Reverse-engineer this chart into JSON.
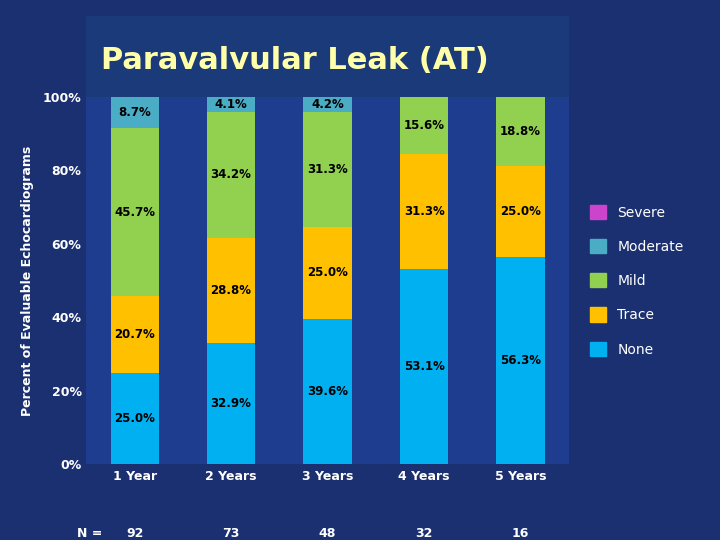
{
  "title": "Paravalvular Leak (AT)",
  "ylabel": "Percent of Evaluable Echocardiograms",
  "header_bg": "#1a3a7a",
  "plot_bg": "#1e3d8f",
  "fig_bg": "#1a3070",
  "categories": [
    "1 Year",
    "2 Years",
    "3 Years",
    "4 Years",
    "5 Years"
  ],
  "n_values": [
    "92",
    "73",
    "48",
    "32",
    "16"
  ],
  "segments": {
    "None": [
      25.0,
      32.9,
      39.6,
      53.1,
      56.3
    ],
    "Trace": [
      20.7,
      28.8,
      25.0,
      31.3,
      25.0
    ],
    "Mild": [
      45.7,
      34.2,
      31.3,
      15.6,
      18.8
    ],
    "Moderate": [
      8.7,
      4.1,
      4.2,
      0.0,
      0.0
    ],
    "Severe": [
      0.0,
      0.0,
      0.0,
      0.0,
      0.0
    ]
  },
  "colors": {
    "None": "#00b0f0",
    "Trace": "#ffc000",
    "Mild": "#92d050",
    "Moderate": "#4bacc6",
    "Severe": "#cc44cc"
  },
  "legend_order": [
    "Severe",
    "Moderate",
    "Mild",
    "Trace",
    "None"
  ],
  "title_color": "#ffffaa",
  "label_color": "#ffffff",
  "tick_color": "#ffffff",
  "axis_label_color": "#ffffff",
  "bar_width": 0.5,
  "ylim": [
    0,
    100
  ],
  "yticks": [
    0,
    20,
    40,
    60,
    80,
    100
  ],
  "ytick_labels": [
    "0%",
    "20%",
    "40%",
    "60%",
    "80%",
    "100%"
  ]
}
